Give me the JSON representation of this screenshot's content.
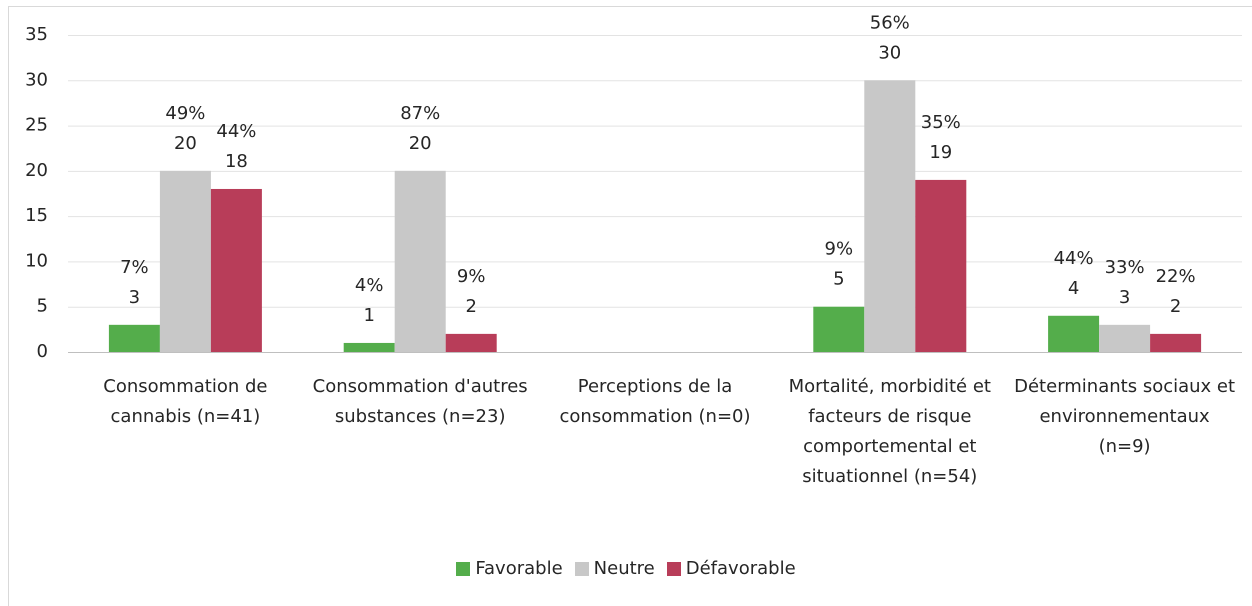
{
  "chart_data": {
    "type": "bar",
    "categories": [
      "Consommation de cannabis (n=41)",
      "Consommation d'autres substances (n=23)",
      "Perceptions de la consommation (n=0)",
      "Mortalité, morbidité et facteurs de risque comportemental et situationnel (n=54)",
      "Déterminants sociaux et environnementaux (n=9)"
    ],
    "series": [
      {
        "name": "Favorable",
        "color": "#54ad4b",
        "values": [
          3,
          1,
          null,
          5,
          4
        ],
        "percent_labels": [
          "7%",
          "4%",
          null,
          "9%",
          "44%"
        ]
      },
      {
        "name": "Neutre",
        "color": "#c8c8c8",
        "values": [
          20,
          20,
          null,
          30,
          3
        ],
        "percent_labels": [
          "49%",
          "87%",
          null,
          "56%",
          "33%"
        ]
      },
      {
        "name": "Défavorable",
        "color": "#b83d59",
        "values": [
          18,
          2,
          null,
          19,
          2
        ],
        "percent_labels": [
          "44%",
          "9%",
          null,
          "35%",
          "22%"
        ]
      }
    ],
    "ylim": [
      0,
      35
    ],
    "yticks": [
      0,
      5,
      10,
      15,
      20,
      25,
      30,
      35
    ],
    "grid": true,
    "legend": "bottom"
  }
}
